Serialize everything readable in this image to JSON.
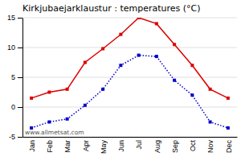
{
  "chart_data": {
    "type": "line",
    "title": "Kirkjubaejarklaustur : temperatures (°C)",
    "categories": [
      "Jan",
      "Feb",
      "Mar",
      "Apr",
      "May",
      "Jun",
      "Jul",
      "Aug",
      "Sep",
      "Oct",
      "Nov",
      "Dec"
    ],
    "series": [
      {
        "color": "#dd0000",
        "line_style": "solid",
        "marker": "square",
        "values": [
          1.5,
          2.5,
          3.0,
          7.5,
          9.8,
          12.2,
          15.0,
          14.0,
          10.5,
          7.0,
          3.0,
          1.5
        ]
      },
      {
        "color": "#0000cc",
        "line_style": "dotted",
        "marker": "square",
        "values": [
          -3.5,
          -2.5,
          -2.0,
          0.3,
          3.0,
          7.0,
          8.7,
          8.5,
          4.5,
          2.0,
          -2.5,
          -3.5
        ]
      }
    ],
    "ylim": [
      -5,
      15
    ],
    "yticks": [
      -5,
      0,
      5,
      10,
      15
    ],
    "grid": true,
    "annotations": [
      "www.allmetsat.com"
    ]
  }
}
